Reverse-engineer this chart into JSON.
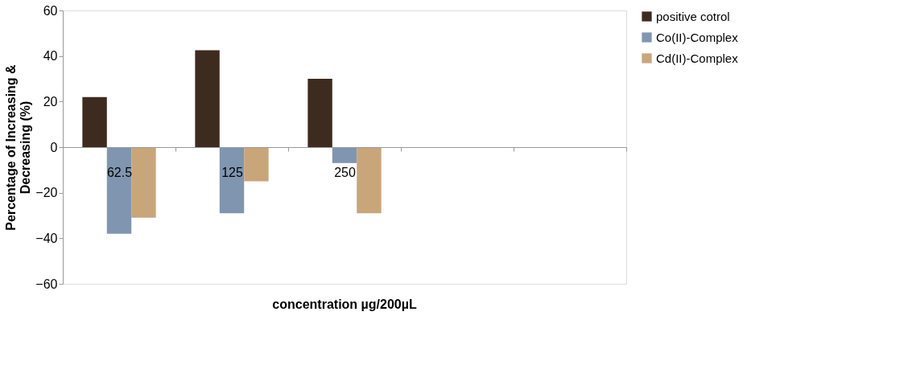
{
  "chart_data": {
    "type": "bar",
    "categories": [
      "62.5",
      "125",
      "250",
      null,
      null
    ],
    "series": [
      {
        "name": "positive cotrol",
        "color": "#3d2b1f",
        "values": [
          22,
          42.5,
          30,
          null,
          null
        ]
      },
      {
        "name": "Co(II)-Complex",
        "color": "#8096b0",
        "values": [
          -38,
          -29,
          -7,
          null,
          null
        ]
      },
      {
        "name": "Cd(II)-Complex",
        "color": "#c9a57a",
        "values": [
          -31,
          -15,
          -29,
          null,
          null
        ]
      }
    ],
    "xlabel": "concentration µg/200µL",
    "ylabel": "Percentage of Increasing & Decreasing (%)",
    "ylim": [
      -60,
      60
    ],
    "yticks": [
      -60,
      -40,
      -20,
      0,
      20,
      40,
      60
    ],
    "grid": false,
    "legend": "right"
  }
}
